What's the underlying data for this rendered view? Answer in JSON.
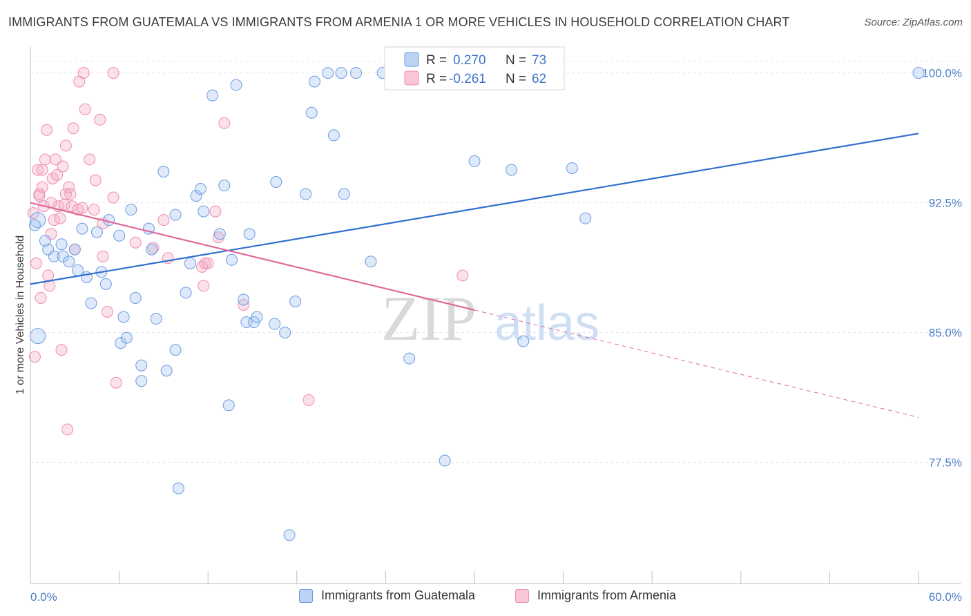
{
  "title": "IMMIGRANTS FROM GUATEMALA VS IMMIGRANTS FROM ARMENIA 1 OR MORE VEHICLES IN HOUSEHOLD CORRELATION CHART",
  "source": "Source: ZipAtlas.com",
  "watermark": {
    "zip": "ZIP",
    "atlas": "atlas"
  },
  "legend": {
    "rows": [
      {
        "r_label": "R =",
        "r_value": "0.270",
        "n_label": "N =",
        "n_value": "73"
      },
      {
        "r_label": "R =",
        "r_value": "-0.261",
        "n_label": "N =",
        "n_value": "62"
      }
    ]
  },
  "bottom_legend": [
    "Immigrants from Guatemala",
    "Immigrants from Armenia"
  ],
  "chart_data": {
    "type": "scatter",
    "title": "IMMIGRANTS FROM GUATEMALA VS IMMIGRANTS FROM ARMENIA 1 OR MORE VEHICLES IN HOUSEHOLD CORRELATION CHART",
    "xlabel": "",
    "ylabel": "1 or more Vehicles in Household",
    "xlim": [
      0,
      60
    ],
    "ylim": [
      70.5,
      101.5
    ],
    "x_tick_labels": [
      "0.0%",
      "60.0%"
    ],
    "y_ticks": [
      77.5,
      85.0,
      92.5,
      100.0
    ],
    "y_tick_labels": [
      "77.5%",
      "85.0%",
      "92.5%",
      "100.0%"
    ],
    "grid": true,
    "legend_position": "top-center",
    "colors": {
      "guatemala": "#6a9be0",
      "guatemala_line": "#2f6fcf",
      "armenia": "#f08bb0",
      "armenia_line": "#e0699a",
      "tick_text": "#4a7cc9"
    },
    "series": [
      {
        "name": "Immigrants from Guatemala",
        "r": 0.27,
        "n": 73,
        "trend": {
          "x": [
            0,
            60
          ],
          "y": [
            87.8,
            96.5
          ]
        },
        "points": [
          [
            0.5,
            84.8
          ],
          [
            0.5,
            91.5
          ],
          [
            1.0,
            90.3
          ],
          [
            1.2,
            89.8
          ],
          [
            1.6,
            89.4
          ],
          [
            2.2,
            89.4
          ],
          [
            2.1,
            90.1
          ],
          [
            2.6,
            89.1
          ],
          [
            3.0,
            89.8
          ],
          [
            3.2,
            88.6
          ],
          [
            3.5,
            91.0
          ],
          [
            3.8,
            88.2
          ],
          [
            4.1,
            86.7
          ],
          [
            4.5,
            90.8
          ],
          [
            4.8,
            88.5
          ],
          [
            5.1,
            87.8
          ],
          [
            5.3,
            91.5
          ],
          [
            6.0,
            90.6
          ],
          [
            6.1,
            84.4
          ],
          [
            6.3,
            85.9
          ],
          [
            6.5,
            84.7
          ],
          [
            6.8,
            92.1
          ],
          [
            7.1,
            87.0
          ],
          [
            7.5,
            83.1
          ],
          [
            7.5,
            82.2
          ],
          [
            8.0,
            91.0
          ],
          [
            8.2,
            89.8
          ],
          [
            8.5,
            85.8
          ],
          [
            9.0,
            94.3
          ],
          [
            9.2,
            82.8
          ],
          [
            9.8,
            91.8
          ],
          [
            9.8,
            84.0
          ],
          [
            10.0,
            76.0
          ],
          [
            10.5,
            87.3
          ],
          [
            10.8,
            89.0
          ],
          [
            11.2,
            92.9
          ],
          [
            11.5,
            93.3
          ],
          [
            11.7,
            92.0
          ],
          [
            12.3,
            98.7
          ],
          [
            12.8,
            90.7
          ],
          [
            13.1,
            93.5
          ],
          [
            13.4,
            80.8
          ],
          [
            13.6,
            89.2
          ],
          [
            13.9,
            99.3
          ],
          [
            14.4,
            86.9
          ],
          [
            14.6,
            85.6
          ],
          [
            14.8,
            90.7
          ],
          [
            15.1,
            85.6
          ],
          [
            15.3,
            85.9
          ],
          [
            16.5,
            85.5
          ],
          [
            16.6,
            93.7
          ],
          [
            17.2,
            85.0
          ],
          [
            17.5,
            73.3
          ],
          [
            17.9,
            86.8
          ],
          [
            18.6,
            93.0
          ],
          [
            19.0,
            97.7
          ],
          [
            19.2,
            99.5
          ],
          [
            20.1,
            100.0
          ],
          [
            20.5,
            96.4
          ],
          [
            21.0,
            100.0
          ],
          [
            21.2,
            93.0
          ],
          [
            22.0,
            100.0
          ],
          [
            23.0,
            89.1
          ],
          [
            23.8,
            100.0
          ],
          [
            25.6,
            83.5
          ],
          [
            28.0,
            77.6
          ],
          [
            30.0,
            94.9
          ],
          [
            32.5,
            94.4
          ],
          [
            33.3,
            84.5
          ],
          [
            36.6,
            94.5
          ],
          [
            37.5,
            91.6
          ],
          [
            60.0,
            100.0
          ],
          [
            0.3,
            91.2
          ]
        ]
      },
      {
        "name": "Immigrants from Armenia",
        "r": -0.261,
        "n": 62,
        "trend": {
          "x": [
            0,
            30
          ],
          "y": [
            92.5,
            86.3
          ]
        },
        "trend_extension": {
          "x": [
            30,
            60
          ],
          "y": [
            86.3,
            80.1
          ]
        },
        "points": [
          [
            0.3,
            83.6
          ],
          [
            0.4,
            89.0
          ],
          [
            0.5,
            94.4
          ],
          [
            0.6,
            92.9
          ],
          [
            0.7,
            87.0
          ],
          [
            0.8,
            94.4
          ],
          [
            0.8,
            93.4
          ],
          [
            0.9,
            92.3
          ],
          [
            1.0,
            95.0
          ],
          [
            1.1,
            96.7
          ],
          [
            1.2,
            88.3
          ],
          [
            1.3,
            87.7
          ],
          [
            1.4,
            90.7
          ],
          [
            1.5,
            93.9
          ],
          [
            1.6,
            91.5
          ],
          [
            1.7,
            95.0
          ],
          [
            1.8,
            94.1
          ],
          [
            1.9,
            92.3
          ],
          [
            2.0,
            91.6
          ],
          [
            2.1,
            84.0
          ],
          [
            2.2,
            94.6
          ],
          [
            2.3,
            92.4
          ],
          [
            2.4,
            93.0
          ],
          [
            2.4,
            95.8
          ],
          [
            2.5,
            79.4
          ],
          [
            2.6,
            93.4
          ],
          [
            2.7,
            93.0
          ],
          [
            2.8,
            92.3
          ],
          [
            2.9,
            96.8
          ],
          [
            3.0,
            89.8
          ],
          [
            3.2,
            92.1
          ],
          [
            3.3,
            99.5
          ],
          [
            3.5,
            92.2
          ],
          [
            3.6,
            100.0
          ],
          [
            3.7,
            97.9
          ],
          [
            4.0,
            95.0
          ],
          [
            4.3,
            92.1
          ],
          [
            4.4,
            93.8
          ],
          [
            4.7,
            97.3
          ],
          [
            4.9,
            89.4
          ],
          [
            4.9,
            91.3
          ],
          [
            5.2,
            86.2
          ],
          [
            5.6,
            100.0
          ],
          [
            5.6,
            92.8
          ],
          [
            5.8,
            82.1
          ],
          [
            7.1,
            90.2
          ],
          [
            8.3,
            89.9
          ],
          [
            9.0,
            91.5
          ],
          [
            9.3,
            89.3
          ],
          [
            11.6,
            88.8
          ],
          [
            11.7,
            87.7
          ],
          [
            11.8,
            89.0
          ],
          [
            12.0,
            89.0
          ],
          [
            12.5,
            92.0
          ],
          [
            12.7,
            90.5
          ],
          [
            13.1,
            97.1
          ],
          [
            14.4,
            86.6
          ],
          [
            18.8,
            81.1
          ],
          [
            29.2,
            88.3
          ],
          [
            0.6,
            93.0
          ],
          [
            1.4,
            92.5
          ],
          [
            0.2,
            91.9
          ]
        ]
      }
    ]
  }
}
